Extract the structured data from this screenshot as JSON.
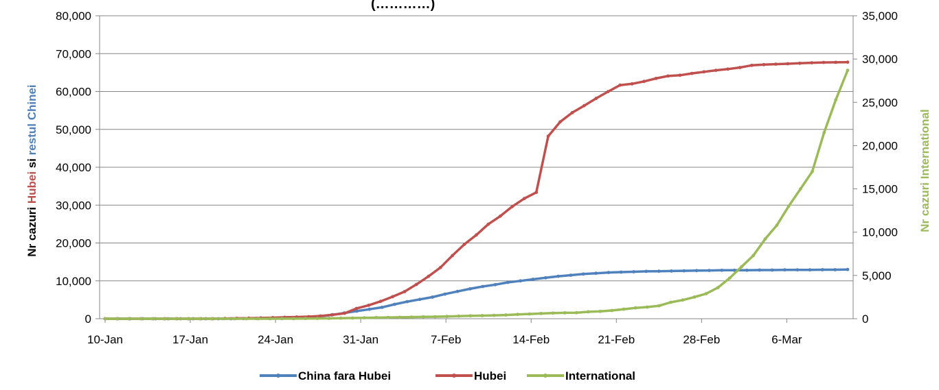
{
  "chart_data": {
    "type": "line",
    "title": "(…………)",
    "ylabel": {
      "parts": [
        {
          "text": "Nr cazuri  ",
          "color": "#000000"
        },
        {
          "text": "Hubei",
          "color": "#C0504D"
        },
        {
          "text": " si ",
          "color": "#000000"
        },
        {
          "text": "restul Chinei",
          "color": "#4F81BD"
        }
      ]
    },
    "y2label": {
      "text": "Nr cazuri International",
      "color": "#9BBB59"
    },
    "x_ticks": [
      "10-Jan",
      "17-Jan",
      "24-Jan",
      "31-Jan",
      "7-Feb",
      "14-Feb",
      "21-Feb",
      "28-Feb",
      "6-Mar"
    ],
    "x_range": [
      "10-Jan",
      "9-Mar"
    ],
    "ylim": [
      0,
      80000
    ],
    "y_ticks": [
      "0",
      "10,000",
      "20,000",
      "30,000",
      "40,000",
      "50,000",
      "60,000",
      "70,000",
      "80,000"
    ],
    "y2lim": [
      0,
      35000
    ],
    "y2_ticks": [
      "0",
      "5,000",
      "10,000",
      "15,000",
      "20,000",
      "25,000",
      "30,000",
      "35,000"
    ],
    "grid": "horizontal",
    "legend_position": "bottom",
    "series": [
      {
        "name": "China fara Hubei",
        "color": "#4F81BD",
        "axis": "left",
        "values": [
          0,
          0,
          0,
          0,
          0,
          0,
          0,
          0,
          0,
          0,
          0,
          30,
          60,
          100,
          150,
          250,
          400,
          600,
          1000,
          1500,
          2000,
          2500,
          3000,
          3800,
          4500,
          5100,
          5700,
          6500,
          7200,
          7900,
          8500,
          9000,
          9600,
          10000,
          10400,
          10800,
          11200,
          11500,
          11800,
          12000,
          12200,
          12300,
          12400,
          12500,
          12550,
          12600,
          12650,
          12700,
          12750,
          12800,
          12800,
          12800,
          12850,
          12850,
          12900,
          12900,
          12900,
          12950,
          12950,
          13000
        ]
      },
      {
        "name": "Hubei",
        "color": "#C0504D",
        "axis": "left",
        "values": [
          0,
          0,
          0,
          0,
          0,
          0,
          0,
          0,
          0,
          0,
          50,
          100,
          150,
          200,
          270,
          375,
          444,
          549,
          729,
          1052,
          1423,
          2714,
          3554,
          4586,
          5806,
          7153,
          9074,
          11177,
          13522,
          16678,
          19665,
          22112,
          24953,
          27100,
          29631,
          31728,
          33366,
          48206,
          51986,
          54406,
          56249,
          58182,
          59989,
          61682,
          62031,
          62662,
          63454,
          64084,
          64287,
          64786,
          65187,
          65596,
          65914,
          66337,
          66907,
          67103,
          67217,
          67332,
          67466,
          67592,
          67666,
          67707,
          67743
        ]
      },
      {
        "name": "International",
        "color": "#9BBB59",
        "axis": "right",
        "values": [
          0,
          0,
          0,
          0,
          0,
          0,
          0,
          0,
          0,
          0,
          0,
          0,
          0,
          0,
          0,
          5,
          10,
          20,
          30,
          40,
          60,
          80,
          100,
          130,
          150,
          170,
          190,
          210,
          230,
          260,
          300,
          330,
          360,
          390,
          430,
          500,
          550,
          600,
          650,
          680,
          700,
          800,
          850,
          950,
          1100,
          1250,
          1350,
          1500,
          1900,
          2150,
          2500,
          2900,
          3600,
          4700,
          6000,
          7300,
          9200,
          10800,
          13000,
          15000,
          17000,
          21500,
          25300,
          28700
        ]
      }
    ]
  }
}
